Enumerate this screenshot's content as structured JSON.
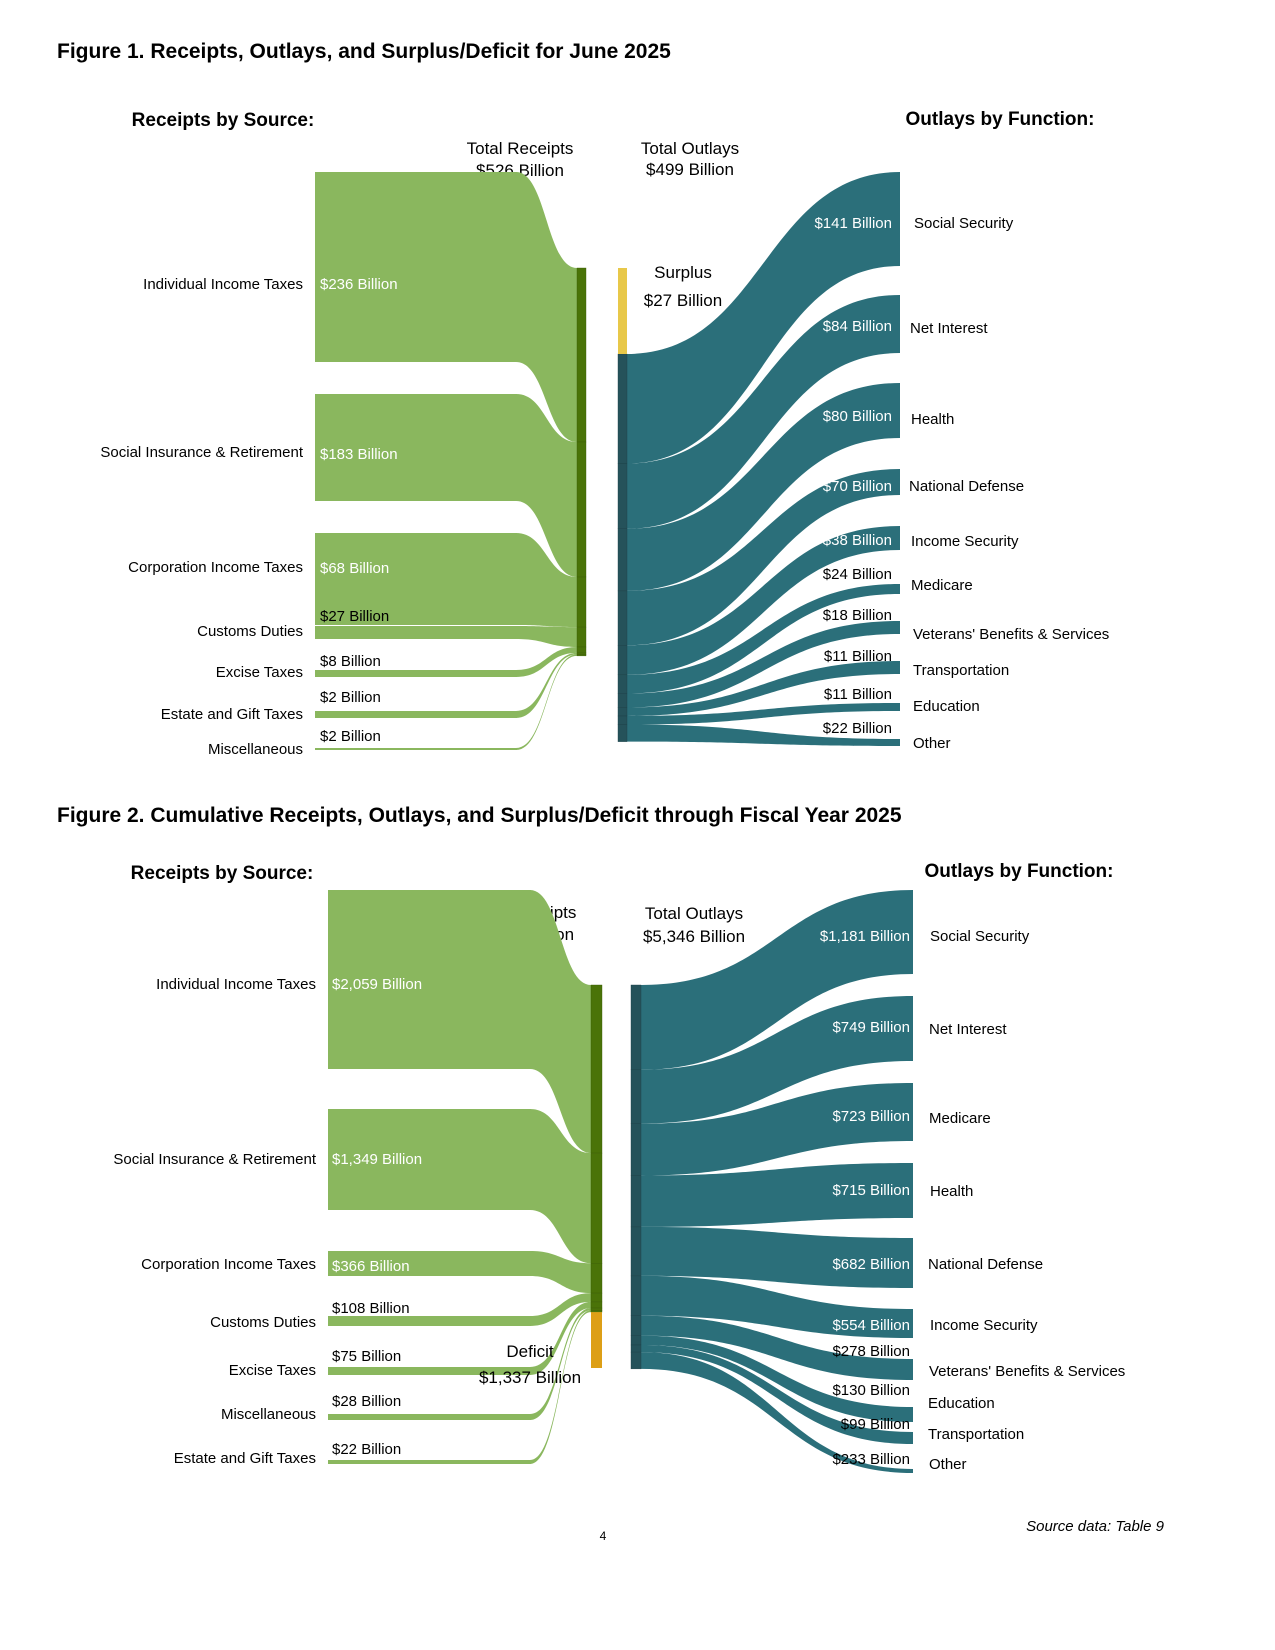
{
  "page_number": "4",
  "source_note": "Source data: Table 9",
  "colors": {
    "receipt_flow": "#8ab75e",
    "receipt_bar": "#4a7308",
    "outlay_flow": "#2b6f7a",
    "outlay_bar": "#25525a",
    "surplus": "#e8c84a",
    "deficit": "#dd9f16",
    "inner_label": "#ffffff"
  },
  "chart_data": [
    {
      "type": "sankey",
      "title": "Figure 1. Receipts, Outlays, and Surplus/Deficit for June 2025",
      "receipts_heading": "Receipts by Source:",
      "outlays_heading": "Outlays by Function:",
      "total_receipts": {
        "label": "Total Receipts",
        "value_label": "$526 Billion",
        "value": 526
      },
      "total_outlays": {
        "label": "Total Outlays",
        "value_label": "$499 Billion",
        "value": 499
      },
      "balance": {
        "kind": "surplus",
        "label": "Surplus",
        "value_label": "$27 Billion",
        "value": 27
      },
      "receipts": [
        {
          "name": "Individual Income Taxes",
          "value": 236,
          "value_label": "$236 Billion"
        },
        {
          "name": "Social Insurance & Retirement",
          "value": 183,
          "value_label": "$183 Billion"
        },
        {
          "name": "Corporation Income Taxes",
          "value": 68,
          "value_label": "$68 Billion"
        },
        {
          "name": "Customs Duties",
          "value": 27,
          "value_label": "$27 Billion"
        },
        {
          "name": "Excise Taxes",
          "value": 8,
          "value_label": "$8 Billion"
        },
        {
          "name": "Estate and Gift Taxes",
          "value": 2,
          "value_label": "$2 Billion"
        },
        {
          "name": "Miscellaneous",
          "value": 2,
          "value_label": "$2 Billion"
        }
      ],
      "outlays": [
        {
          "name": "Social Security",
          "value": 141,
          "value_label": "$141 Billion"
        },
        {
          "name": "Net Interest",
          "value": 84,
          "value_label": "$84 Billion"
        },
        {
          "name": "Health",
          "value": 80,
          "value_label": "$80 Billion"
        },
        {
          "name": "National Defense",
          "value": 70,
          "value_label": "$70 Billion"
        },
        {
          "name": "Income Security",
          "value": 38,
          "value_label": "$38 Billion"
        },
        {
          "name": "Medicare",
          "value": 24,
          "value_label": "$24 Billion"
        },
        {
          "name": "Veterans' Benefits & Services",
          "value": 18,
          "value_label": "$18 Billion"
        },
        {
          "name": "Transportation",
          "value": 11,
          "value_label": "$11 Billion"
        },
        {
          "name": "Education",
          "value": 11,
          "value_label": "$11 Billion"
        },
        {
          "name": "Other",
          "value": 22,
          "value_label": "$22 Billion"
        }
      ]
    },
    {
      "type": "sankey",
      "title": "Figure 2. Cumulative Receipts, Outlays, and Surplus/Deficit through Fiscal Year 2025",
      "receipts_heading": "Receipts by Source:",
      "outlays_heading": "Outlays by Function:",
      "total_receipts": {
        "label": "Total Receipts",
        "value_label": "$4,008 Billion",
        "value": 4008
      },
      "total_outlays": {
        "label": "Total Outlays",
        "value_label": "$5,346 Billion",
        "value": 5346
      },
      "balance": {
        "kind": "deficit",
        "label": "Deficit",
        "value_label": "$1,337 Billion",
        "value": 1337
      },
      "receipts": [
        {
          "name": "Individual Income Taxes",
          "value": 2059,
          "value_label": "$2,059 Billion"
        },
        {
          "name": "Social Insurance & Retirement",
          "value": 1349,
          "value_label": "$1,349 Billion"
        },
        {
          "name": "Corporation Income Taxes",
          "value": 366,
          "value_label": "$366 Billion"
        },
        {
          "name": "Customs Duties",
          "value": 108,
          "value_label": "$108 Billion"
        },
        {
          "name": "Excise Taxes",
          "value": 75,
          "value_label": "$75 Billion"
        },
        {
          "name": "Miscellaneous",
          "value": 28,
          "value_label": "$28 Billion"
        },
        {
          "name": "Estate and Gift Taxes",
          "value": 22,
          "value_label": "$22 Billion"
        }
      ],
      "outlays": [
        {
          "name": "Social Security",
          "value": 1181,
          "value_label": "$1,181 Billion"
        },
        {
          "name": "Net Interest",
          "value": 749,
          "value_label": "$749 Billion"
        },
        {
          "name": "Medicare",
          "value": 723,
          "value_label": "$723 Billion"
        },
        {
          "name": "Health",
          "value": 715,
          "value_label": "$715 Billion"
        },
        {
          "name": "National Defense",
          "value": 682,
          "value_label": "$682 Billion"
        },
        {
          "name": "Income Security",
          "value": 554,
          "value_label": "$554 Billion"
        },
        {
          "name": "Veterans' Benefits & Services",
          "value": 278,
          "value_label": "$278 Billion"
        },
        {
          "name": "Education",
          "value": 130,
          "value_label": "$130 Billion"
        },
        {
          "name": "Transportation",
          "value": 99,
          "value_label": "$99 Billion"
        },
        {
          "name": "Other",
          "value": 233,
          "value_label": "$233 Billion"
        }
      ]
    }
  ]
}
